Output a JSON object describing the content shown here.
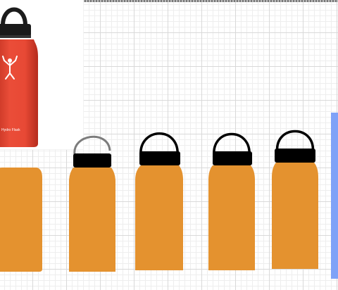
{
  "colors": {
    "bottle_orange": "#E4922F",
    "cap_black": "#000000",
    "handle_gray": "#7C7C7C",
    "photo_red": "#E84935",
    "selection_blue": "#7FA2F7"
  },
  "photo": {
    "brand_text": "Hydro Flask",
    "logo_icon": "hydro-flask-logo-icon"
  },
  "bottles": [
    {
      "id": 1,
      "has_cap": false
    },
    {
      "id": 2,
      "has_cap": true,
      "handle": "gray"
    },
    {
      "id": 3,
      "has_cap": true,
      "handle": "black"
    },
    {
      "id": 4,
      "has_cap": true,
      "handle": "black"
    },
    {
      "id": 5,
      "has_cap": true,
      "handle": "black"
    }
  ]
}
